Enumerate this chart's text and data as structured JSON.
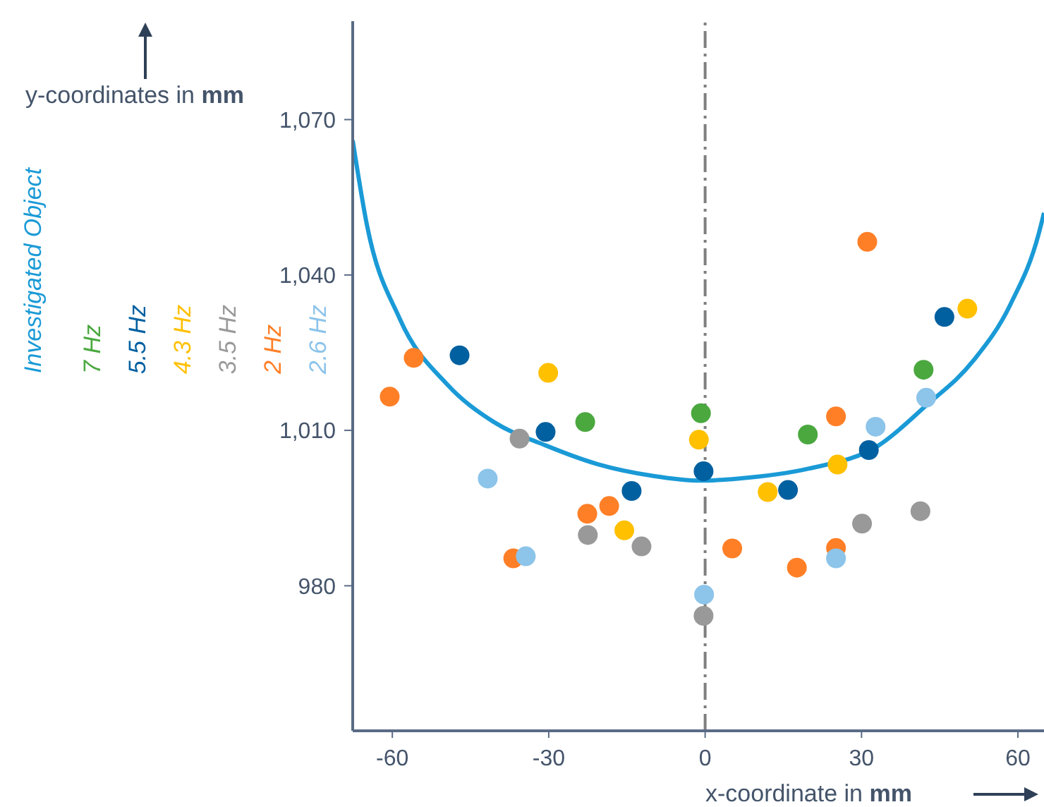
{
  "chart_data": {
    "type": "scatter",
    "xlabel": "x-coordinate in mm",
    "ylabel": "y-coordinates in mm",
    "xlim": [
      -67.6,
      65
    ],
    "ylim": [
      952,
      1089
    ],
    "xticks": [
      -60,
      -30,
      0,
      30,
      60
    ],
    "yticks": [
      980,
      {
        "value": 1010,
        "label": "1,010"
      },
      {
        "value": 1040,
        "label": "1,040"
      },
      {
        "value": 1070,
        "label": "1,070"
      }
    ],
    "grid": false,
    "legend": "left",
    "marker": "circle",
    "ref_lines": [
      {
        "axis": "x",
        "value": 0,
        "color": "#7f7f7f",
        "line_style": "dashed"
      }
    ],
    "series": [
      {
        "name": "Investigated Object",
        "type": "line",
        "marker": "none",
        "color": "#1a9ad6",
        "x": [
          -67.6,
          -64.9,
          -58.6,
          -49.5,
          -40.5,
          -30.6,
          -20.7,
          -9.9,
          -0.9,
          6.3,
          19.8,
          33.3,
          42.4,
          51.4,
          58.6,
          64,
          65
        ],
        "values": [
          1066,
          1049.8,
          1031.6,
          1018.9,
          1011.6,
          1007.1,
          1003.5,
          1001.2,
          1000.3,
          1000.7,
          1002.6,
          1007.1,
          1014.8,
          1023.4,
          1034.4,
          1048,
          1052
        ]
      },
      {
        "name": "7 Hz",
        "color": "#4aa83f",
        "x": [
          -23,
          -0.8,
          19.7,
          41.9
        ],
        "values": [
          1011.6,
          1013.3,
          1009.2,
          1021.7
        ]
      },
      {
        "name": "5.5 Hz",
        "color": "#0060a0",
        "x": [
          -47.1,
          -30.6,
          -14.1,
          -0.3,
          15.9,
          31.4,
          45.9
        ],
        "values": [
          1024.5,
          1009.7,
          998.3,
          1002.1,
          998.5,
          1006.2,
          1031.9
        ]
      },
      {
        "name": "4.3 Hz",
        "color": "#ffc000",
        "x": [
          -30.1,
          -15.5,
          -1.2,
          12,
          25.4,
          50.3
        ],
        "values": [
          1021.1,
          990.7,
          1008.2,
          998.1,
          1003.4,
          1033.5
        ]
      },
      {
        "name": "3.5 Hz",
        "color": "#999999",
        "x": [
          -35.6,
          -22.5,
          -12.2,
          -0.3,
          30.1,
          41.3
        ],
        "values": [
          1008.4,
          989.8,
          987.6,
          974.2,
          992,
          994.4
        ]
      },
      {
        "name": "2 Hz",
        "color": "#ff7f27",
        "x": [
          -60.5,
          -55.9,
          -22.6,
          -18.4,
          -36.8,
          31.1,
          25.1,
          5.2,
          17.6,
          25.1
        ],
        "values": [
          1016.5,
          1024,
          993.9,
          995.4,
          985.3,
          1046.4,
          1012.7,
          987.2,
          983.5,
          987.3
        ]
      },
      {
        "name": "2.6 Hz",
        "color": "#8cc4ea",
        "x": [
          -41.7,
          -34.4,
          -0.2,
          25.1,
          32.7,
          42.4
        ],
        "values": [
          1000.7,
          985.7,
          978.3,
          985.3,
          1010.7,
          1016.3
        ]
      }
    ]
  }
}
